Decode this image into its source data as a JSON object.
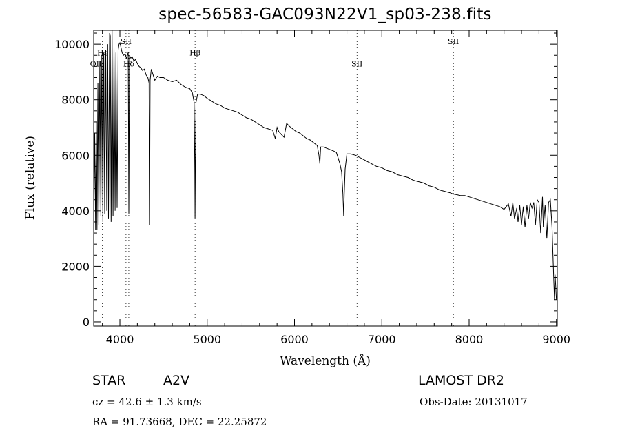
{
  "header": {
    "title": "spec-56583-GAC093N22V1_sp03-238.fits"
  },
  "info": {
    "object_type": "STAR",
    "spectral_class": "A2V",
    "survey": "LAMOST DR2",
    "cz": "cz = 42.6 ± 1.3 km/s",
    "obs_date": "Obs-Date: 20131017",
    "radec": "RA =  91.73668, DEC =  22.25872"
  },
  "chart_data": {
    "type": "line",
    "title": "spec-56583-GAC093N22V1_sp03-238.fits",
    "xlabel": "Wavelength (Å)",
    "ylabel": "Flux (relative)",
    "xlim": [
      3700,
      9010
    ],
    "ylim": [
      -150,
      10500
    ],
    "xticks": [
      4000,
      5000,
      6000,
      7000,
      8000,
      9000
    ],
    "yticks": [
      0,
      2000,
      4000,
      6000,
      8000,
      10000
    ],
    "grid": false,
    "line_color": "#000000",
    "series": [
      {
        "name": "",
        "x": [
          3700,
          3712,
          3722,
          3730,
          3738,
          3748,
          3758,
          3770,
          3782,
          3793,
          3805,
          3815,
          3826,
          3838,
          3850,
          3860,
          3870,
          3882,
          3890,
          3900,
          3911,
          3922,
          3933,
          3945,
          3955,
          3968,
          3980,
          3990,
          4000,
          4012,
          4025,
          4040,
          4060,
          4075,
          4095,
          4102,
          4110,
          4125,
          4140,
          4160,
          4180,
          4200,
          4220,
          4240,
          4260,
          4280,
          4300,
          4320,
          4334,
          4340,
          4346,
          4360,
          4380,
          4400,
          4430,
          4460,
          4500,
          4550,
          4600,
          4650,
          4700,
          4750,
          4800,
          4830,
          4850,
          4858,
          4861,
          4864,
          4872,
          4890,
          4920,
          4960,
          5000,
          5050,
          5100,
          5150,
          5200,
          5250,
          5300,
          5350,
          5400,
          5450,
          5500,
          5550,
          5600,
          5650,
          5700,
          5750,
          5780,
          5800,
          5820,
          5850,
          5880,
          5895,
          5910,
          5940,
          5980,
          6020,
          6060,
          6100,
          6140,
          6180,
          6220,
          6260,
          6280,
          6290,
          6300,
          6330,
          6370,
          6410,
          6450,
          6480,
          6500,
          6520,
          6540,
          6555,
          6563,
          6570,
          6580,
          6600,
          6640,
          6700,
          6760,
          6820,
          6880,
          6940,
          7000,
          7060,
          7120,
          7180,
          7240,
          7300,
          7360,
          7420,
          7480,
          7540,
          7600,
          7660,
          7720,
          7780,
          7820,
          7860,
          7900,
          7950,
          8000,
          8050,
          8100,
          8150,
          8200,
          8250,
          8300,
          8350,
          8400,
          8450,
          8480,
          8500,
          8520,
          8545,
          8560,
          8580,
          8600,
          8620,
          8640,
          8662,
          8680,
          8700,
          8720,
          8740,
          8760,
          8780,
          8800,
          8820,
          8840,
          8850,
          8870,
          8890,
          8910,
          8930,
          8950,
          8960,
          8970,
          8978,
          8985,
          8992,
          9000
        ],
        "y": [
          3400,
          6800,
          3300,
          7200,
          3300,
          8600,
          3500,
          9400,
          3800,
          9600,
          3600,
          9700,
          3900,
          9800,
          4000,
          10000,
          3700,
          10400,
          10300,
          3600,
          10500,
          3800,
          9900,
          4000,
          9700,
          4100,
          9800,
          10000,
          10050,
          9900,
          9700,
          9600,
          9650,
          9500,
          9700,
          3900,
          9600,
          9500,
          9550,
          9400,
          9450,
          9300,
          9200,
          9150,
          9050,
          9100,
          8900,
          8800,
          8600,
          3500,
          8700,
          9100,
          8900,
          8700,
          8850,
          8800,
          8800,
          8700,
          8650,
          8700,
          8550,
          8450,
          8400,
          8250,
          7900,
          5400,
          3700,
          5400,
          7900,
          8200,
          8200,
          8150,
          8050,
          7950,
          7850,
          7800,
          7700,
          7650,
          7600,
          7550,
          7450,
          7350,
          7300,
          7200,
          7100,
          7000,
          6950,
          6900,
          6600,
          7000,
          6850,
          6750,
          6650,
          6900,
          7150,
          7050,
          6950,
          6850,
          6800,
          6700,
          6600,
          6550,
          6450,
          6350,
          6000,
          5700,
          6300,
          6300,
          6250,
          6200,
          6150,
          6100,
          5900,
          5700,
          5400,
          4600,
          3800,
          4600,
          5500,
          6050,
          6050,
          6000,
          5900,
          5800,
          5700,
          5600,
          5550,
          5450,
          5400,
          5300,
          5250,
          5200,
          5100,
          5050,
          5000,
          4900,
          4850,
          4750,
          4700,
          4650,
          4600,
          4580,
          4550,
          4550,
          4500,
          4450,
          4400,
          4350,
          4300,
          4250,
          4200,
          4150,
          4050,
          4250,
          3800,
          4300,
          3700,
          4100,
          3600,
          4200,
          3500,
          4150,
          3400,
          4200,
          3700,
          4300,
          4100,
          4300,
          3500,
          4400,
          4300,
          3200,
          4500,
          3400,
          4200,
          3000,
          4300,
          4400,
          3400,
          2400,
          1500,
          800,
          1700,
          1300,
          800
        ]
      }
    ],
    "annotations": [
      {
        "text": "OII",
        "x": 3727,
        "y": 9200
      },
      {
        "text": "Hε",
        "x": 3800,
        "y": 9600
      },
      {
        "text": "SII",
        "x": 4070,
        "y": 10000
      },
      {
        "text": "Hδ",
        "x": 4102,
        "y": 9200
      },
      {
        "text": "Hβ",
        "x": 4861,
        "y": 9600
      },
      {
        "text": "SII",
        "x": 6716,
        "y": 9200
      },
      {
        "text": "SII",
        "x": 7820,
        "y": 10000
      }
    ],
    "marker_lines": [
      3727,
      3800,
      4070,
      4102,
      4861,
      6716,
      7820
    ]
  }
}
